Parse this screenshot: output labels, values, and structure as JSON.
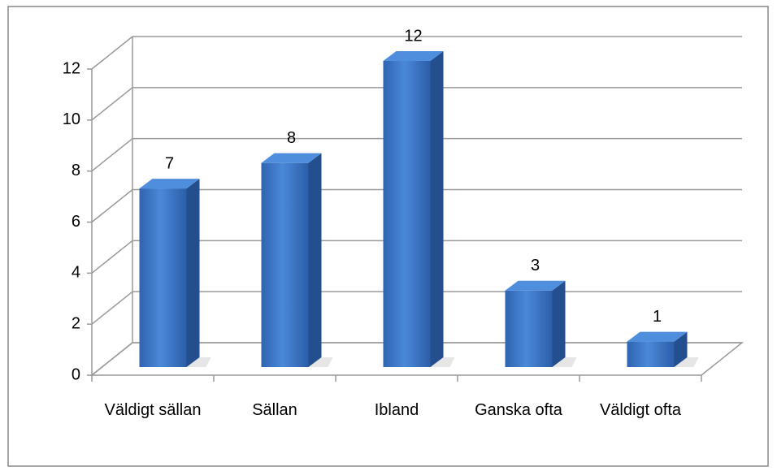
{
  "chart_data": {
    "type": "bar3d",
    "categories": [
      "Väldigt sällan",
      "Sällan",
      "Ibland",
      "Ganska ofta",
      "Väldigt ofta"
    ],
    "values": [
      7,
      8,
      12,
      3,
      1
    ],
    "color": "#3a74c4",
    "ylim": [
      0,
      12
    ],
    "yticks": [
      0,
      2,
      4,
      6,
      8,
      10,
      12
    ],
    "grid": true
  }
}
